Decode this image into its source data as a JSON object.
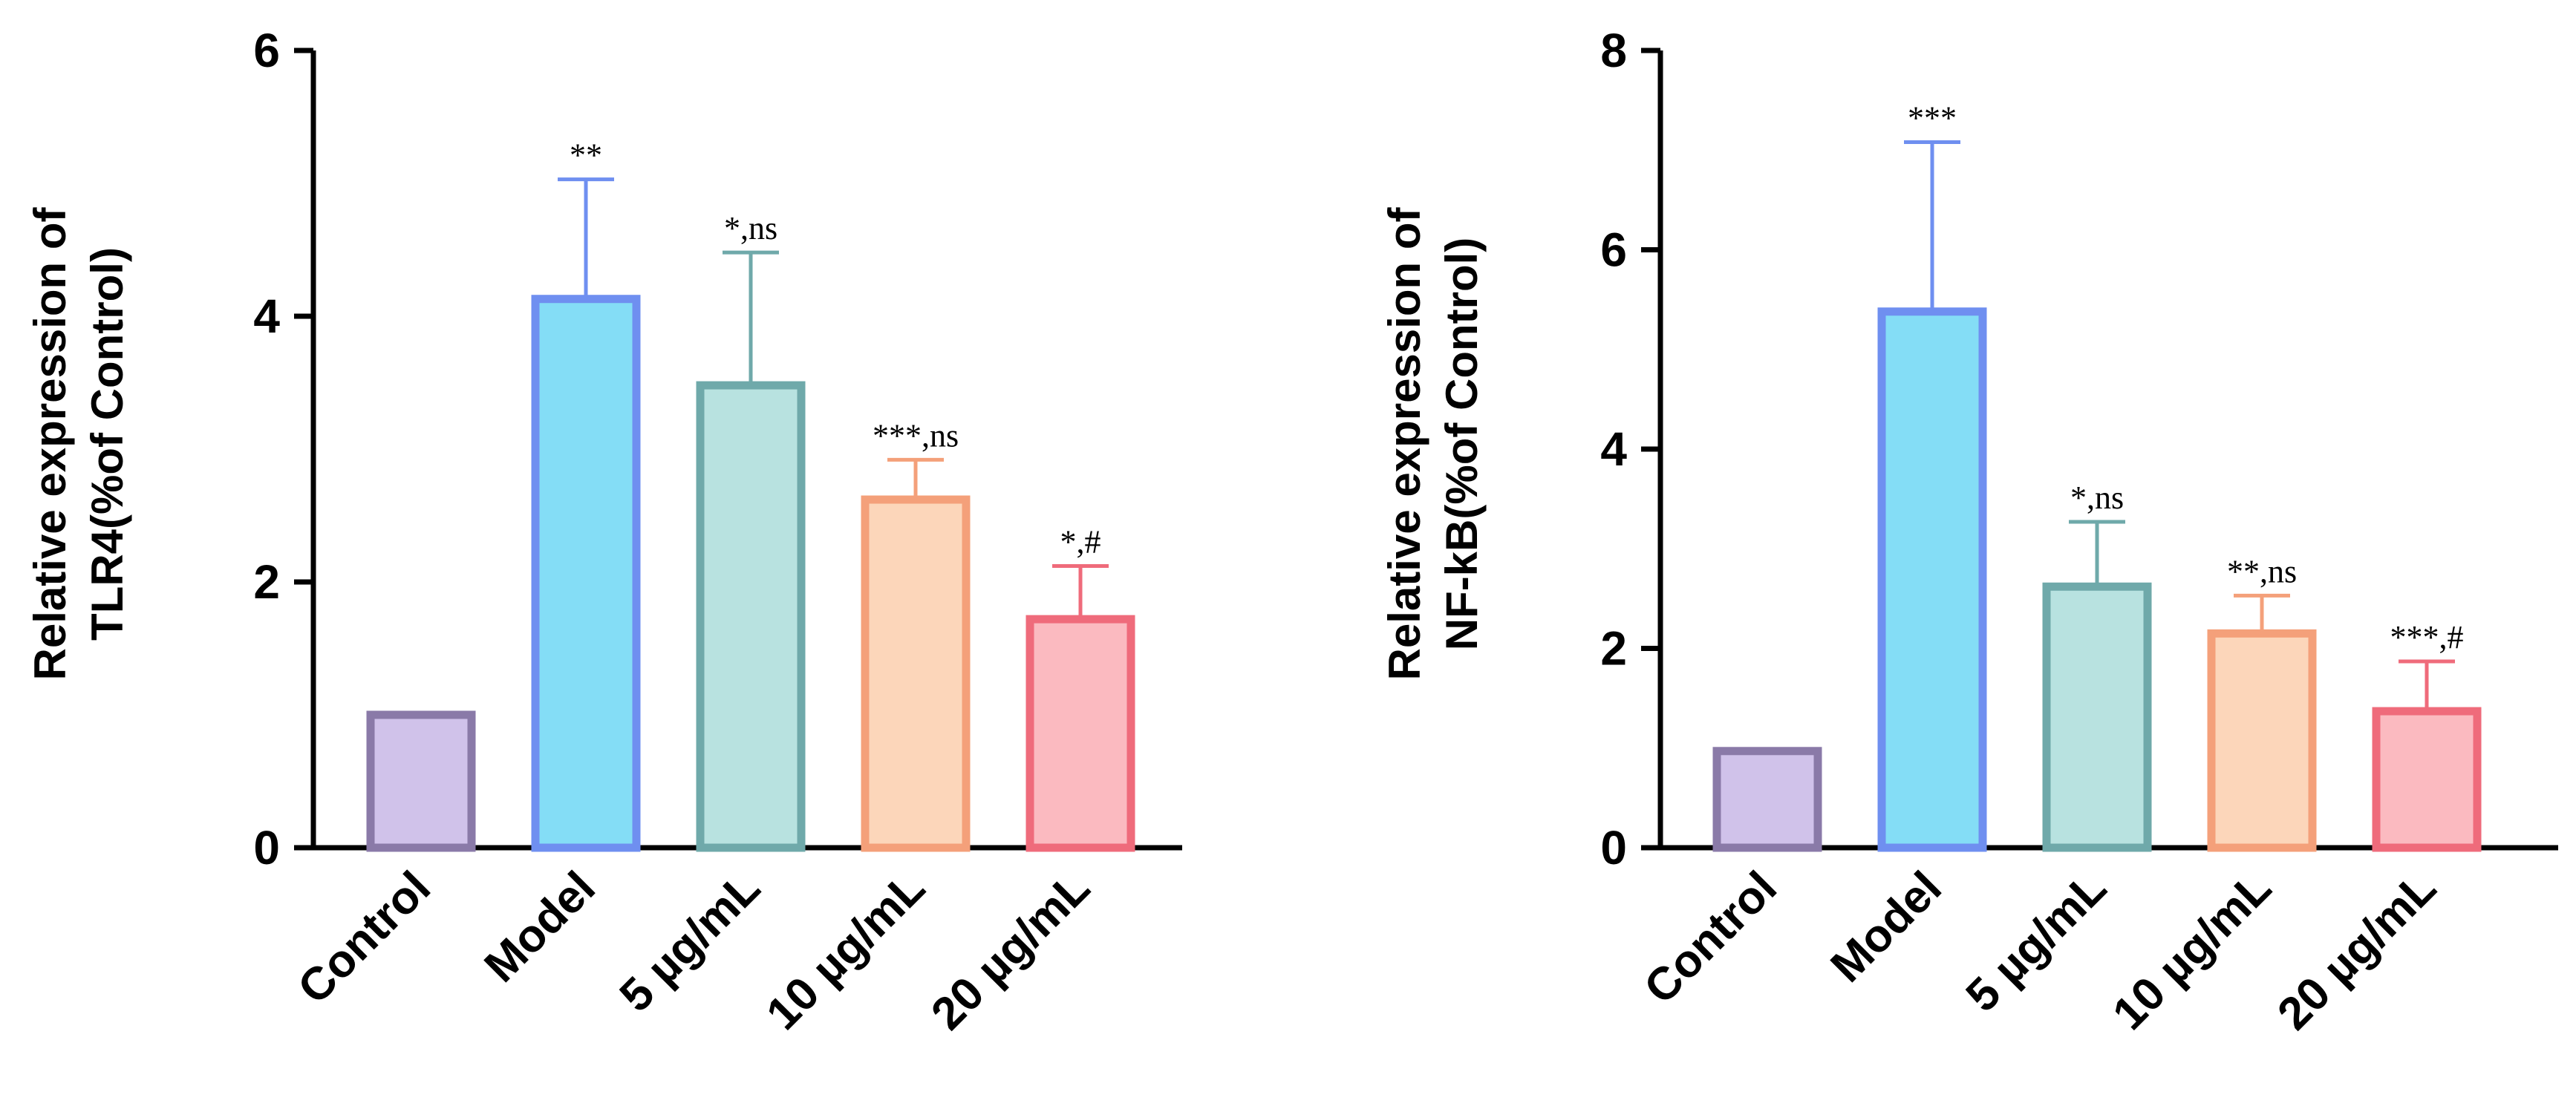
{
  "chart_data": [
    {
      "type": "bar",
      "id": "tlr4",
      "ylabel_line1": "Relative expression of",
      "ylabel_line2": "TLR4(%of Control)",
      "categories": [
        "Control",
        "Model",
        "5 µg/mL",
        "10 µg/mL",
        "20 µg/mL"
      ],
      "values": [
        1.0,
        4.13,
        3.48,
        2.62,
        1.72
      ],
      "errors": [
        0,
        0.9,
        1.0,
        0.3,
        0.4
      ],
      "significance": [
        "",
        "**",
        "*,ns",
        "***,ns",
        "*,#"
      ],
      "ylim": [
        0,
        6
      ],
      "yticks": [
        "0",
        "2",
        "4",
        "6"
      ],
      "ytick_values": [
        0,
        2,
        4,
        6
      ]
    },
    {
      "type": "bar",
      "id": "nfkb",
      "ylabel_line1": "Relative expression of",
      "ylabel_line2": "NF-kB(%of Control)",
      "categories": [
        "Control",
        "Model",
        "5 µg/mL",
        "10 µg/mL",
        "20 µg/mL"
      ],
      "values": [
        0.97,
        5.38,
        2.62,
        2.15,
        1.37
      ],
      "errors": [
        0,
        1.7,
        0.65,
        0.38,
        0.5
      ],
      "significance": [
        "",
        "***",
        "*,ns",
        "**,ns",
        "***,#"
      ],
      "ylim": [
        0,
        8
      ],
      "yticks": [
        "0",
        "2",
        "4",
        "6",
        "8"
      ],
      "ytick_values": [
        0,
        2,
        4,
        6,
        8
      ]
    }
  ],
  "colors": {
    "fills": [
      "#d0c2ea",
      "#84ddf6",
      "#b8e2e0",
      "#fcd6ba",
      "#fbbac0"
    ],
    "strokes": [
      "#8a7aa8",
      "#6f8ff0",
      "#6fa9aa",
      "#f4a07a",
      "#ef6b7b"
    ],
    "axis": "#000000"
  }
}
